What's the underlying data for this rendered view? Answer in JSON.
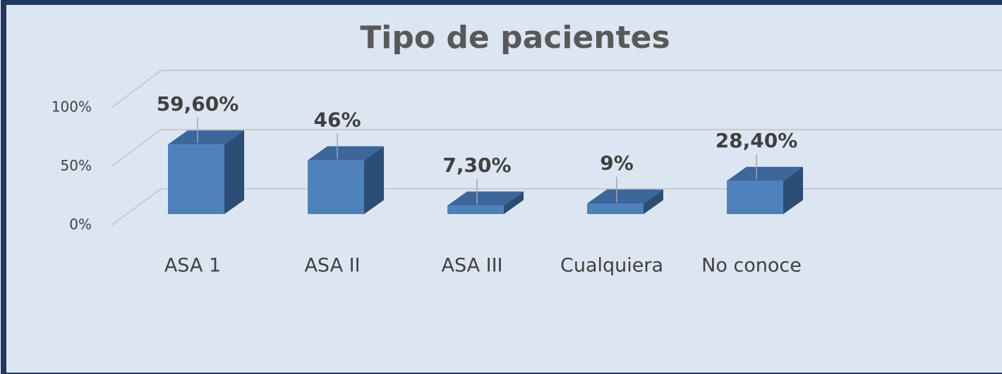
{
  "chart_data": {
    "type": "bar3d",
    "title": "Tipo  de pacientes",
    "categories": [
      "ASA 1",
      "ASA II",
      "ASA III",
      "Cualquiera",
      "No conoce"
    ],
    "values": [
      59.6,
      46,
      7.3,
      9,
      28.4
    ],
    "value_labels": [
      "59,60%",
      "46%",
      "7,30%",
      "9%",
      "28,40%"
    ],
    "color": "#4f81bd",
    "ylim": [
      0,
      100
    ],
    "yticks": [
      {
        "value": 0,
        "label": "0%"
      },
      {
        "value": 50,
        "label": "50%"
      },
      {
        "value": 100,
        "label": "100%"
      }
    ],
    "grid": true
  }
}
